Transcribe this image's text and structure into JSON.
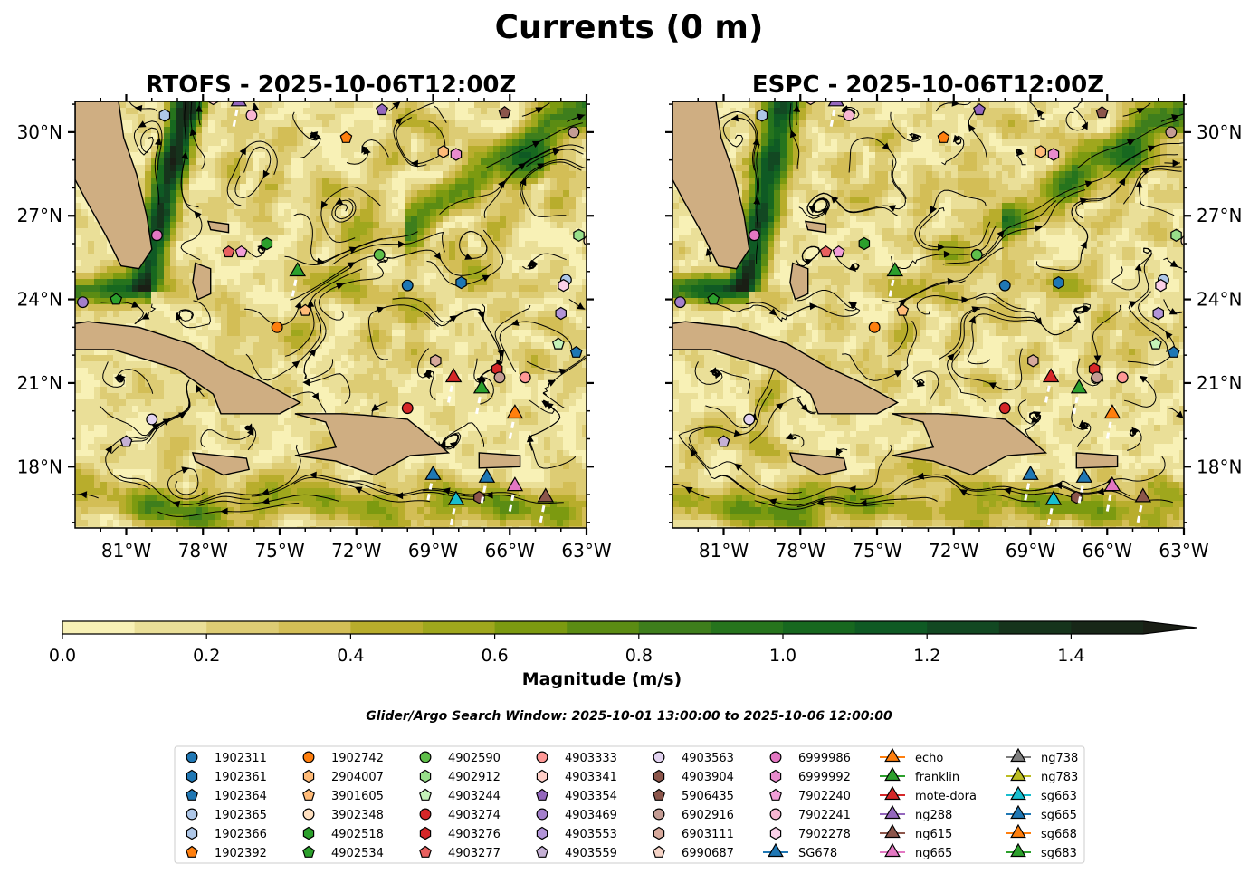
{
  "figure": {
    "title": "Currents (0 m)",
    "window_text": "Glider/Argo Search Window: 2025-10-01 13:00:00 to 2025-10-06 12:00:00"
  },
  "chart_data": [
    {
      "type": "heatmap",
      "title": "RTOFS - 2025-10-06T12:00Z",
      "xlabel": "",
      "ylabel": "",
      "lon_range": [
        -83.0,
        -63.0
      ],
      "lat_range": [
        15.8,
        31.1
      ],
      "x_ticks": [
        "81°W",
        "78°W",
        "75°W",
        "72°W",
        "69°W",
        "66°W",
        "63°W"
      ],
      "y_ticks": [
        "18°N",
        "21°N",
        "24°N",
        "27°N",
        "30°N"
      ],
      "y_tick_side": "left",
      "grid": false
    },
    {
      "type": "heatmap",
      "title": "ESPC - 2025-10-06T12:00Z",
      "xlabel": "",
      "ylabel": "",
      "lon_range": [
        -83.0,
        -63.0
      ],
      "lat_range": [
        15.8,
        31.1
      ],
      "x_ticks": [
        "81°W",
        "78°W",
        "75°W",
        "72°W",
        "69°W",
        "66°W",
        "63°W"
      ],
      "y_ticks": [
        "18°N",
        "21°N",
        "24°N",
        "27°N",
        "30°N"
      ],
      "y_tick_side": "right",
      "grid": false
    }
  ],
  "colorbar": {
    "label": "Magnitude (m/s)",
    "range": [
      0.0,
      1.5
    ],
    "step": 0.1,
    "extend": "max",
    "ticks": [
      "0.0",
      "0.2",
      "0.4",
      "0.6",
      "0.8",
      "1.0",
      "1.2",
      "1.4"
    ],
    "colors": [
      "#f8f1b6",
      "#eadf98",
      "#ddcc74",
      "#d3be56",
      "#b8ad2c",
      "#9fa71d",
      "#7c9a10",
      "#5b8c13",
      "#3e7e1c",
      "#26741d",
      "#17681f",
      "#0f5a24",
      "#124822",
      "#16341c",
      "#182718",
      "#1a1e15"
    ]
  },
  "legend": {
    "columns": [
      [
        {
          "label": "1902311",
          "marker": "circle",
          "color": "#1f77b4"
        },
        {
          "label": "1902361",
          "marker": "hexagon",
          "color": "#1f77b4"
        },
        {
          "label": "1902364",
          "marker": "pentagon",
          "color": "#1f77b4"
        },
        {
          "label": "1902365",
          "marker": "circle",
          "color": "#aec7e8"
        },
        {
          "label": "1902366",
          "marker": "hexagon",
          "color": "#aec7e8"
        },
        {
          "label": "1902392",
          "marker": "pentagon",
          "color": "#ff7f0e"
        }
      ],
      [
        {
          "label": "1902742",
          "marker": "circle",
          "color": "#ff7f0e"
        },
        {
          "label": "2904007",
          "marker": "hexagon",
          "color": "#ffbb78"
        },
        {
          "label": "3901605",
          "marker": "pentagon",
          "color": "#ffbb78"
        },
        {
          "label": "3902348",
          "marker": "circle",
          "color": "#ffe0c0"
        },
        {
          "label": "4902518",
          "marker": "hexagon",
          "color": "#2ca02c"
        },
        {
          "label": "4902534",
          "marker": "pentagon",
          "color": "#2ca02c"
        }
      ],
      [
        {
          "label": "4902590",
          "marker": "circle",
          "color": "#5fbf4a"
        },
        {
          "label": "4902912",
          "marker": "hexagon",
          "color": "#98df8a"
        },
        {
          "label": "4903244",
          "marker": "pentagon",
          "color": "#c5f2b8"
        },
        {
          "label": "4903274",
          "marker": "circle",
          "color": "#d62728"
        },
        {
          "label": "4903276",
          "marker": "hexagon",
          "color": "#d62728"
        },
        {
          "label": "4903277",
          "marker": "pentagon",
          "color": "#e8605f"
        }
      ],
      [
        {
          "label": "4903333",
          "marker": "circle",
          "color": "#ff9896"
        },
        {
          "label": "4903341",
          "marker": "hexagon",
          "color": "#ffcfc8"
        },
        {
          "label": "4903354",
          "marker": "pentagon",
          "color": "#9467bd"
        },
        {
          "label": "4903469",
          "marker": "circle",
          "color": "#a47fcc"
        },
        {
          "label": "4903553",
          "marker": "hexagon",
          "color": "#b294d8"
        },
        {
          "label": "4903559",
          "marker": "pentagon",
          "color": "#c5b0d5"
        }
      ],
      [
        {
          "label": "4903563",
          "marker": "circle",
          "color": "#e2d3f0"
        },
        {
          "label": "4903904",
          "marker": "hexagon",
          "color": "#8c564b"
        },
        {
          "label": "5906435",
          "marker": "pentagon",
          "color": "#8c564b"
        },
        {
          "label": "6902916",
          "marker": "circle",
          "color": "#c49c94"
        },
        {
          "label": "6903111",
          "marker": "hexagon",
          "color": "#d7a99c"
        },
        {
          "label": "6990687",
          "marker": "pentagon",
          "color": "#f5d3c6"
        }
      ],
      [
        {
          "label": "6999986",
          "marker": "circle",
          "color": "#e377c2"
        },
        {
          "label": "6999992",
          "marker": "hexagon",
          "color": "#e98bcd"
        },
        {
          "label": "7902240",
          "marker": "pentagon",
          "color": "#f29ed8"
        },
        {
          "label": "7902241",
          "marker": "circle",
          "color": "#f7b6d2"
        },
        {
          "label": "7902278",
          "marker": "hexagon",
          "color": "#fbd0e8"
        },
        {
          "label": "SG678",
          "marker": "triangle",
          "color": "#1f77b4"
        }
      ],
      [
        {
          "label": "echo",
          "marker": "triangle",
          "color": "#ff7f0e"
        },
        {
          "label": "franklin",
          "marker": "triangle",
          "color": "#2ca02c"
        },
        {
          "label": "mote-dora",
          "marker": "triangle",
          "color": "#d62728"
        },
        {
          "label": "ng288",
          "marker": "triangle",
          "color": "#9467bd"
        },
        {
          "label": "ng615",
          "marker": "triangle",
          "color": "#8c564b"
        },
        {
          "label": "ng665",
          "marker": "triangle",
          "color": "#e377c2"
        }
      ],
      [
        {
          "label": "ng738",
          "marker": "triangle",
          "color": "#7f7f7f"
        },
        {
          "label": "ng783",
          "marker": "triangle",
          "color": "#bcbd22"
        },
        {
          "label": "sg663",
          "marker": "triangle",
          "color": "#17becf"
        },
        {
          "label": "sg665",
          "marker": "triangle",
          "color": "#1f77b4"
        },
        {
          "label": "sg668",
          "marker": "triangle",
          "color": "#ff7f0e"
        },
        {
          "label": "sg683",
          "marker": "triangle",
          "color": "#2ca02c"
        }
      ]
    ]
  },
  "floats": [
    {
      "id": "1902311",
      "lon": -70.0,
      "lat": 24.5
    },
    {
      "id": "1902361",
      "lon": -67.9,
      "lat": 24.6
    },
    {
      "id": "1902364",
      "lon": -63.4,
      "lat": 22.1
    },
    {
      "id": "1902365",
      "lon": -63.8,
      "lat": 24.7
    },
    {
      "id": "1902366",
      "lon": -79.5,
      "lat": 30.6
    },
    {
      "id": "1902392",
      "lon": -72.4,
      "lat": 29.8
    },
    {
      "id": "1902742",
      "lon": -75.1,
      "lat": 23.0
    },
    {
      "id": "2904007",
      "lon": -68.6,
      "lat": 29.3
    },
    {
      "id": "3901605",
      "lon": -74.0,
      "lat": 23.6
    },
    {
      "id": "3902348",
      "lon": -62.9,
      "lat": 26.1
    },
    {
      "id": "4902518",
      "lon": -75.5,
      "lat": 26.0
    },
    {
      "id": "4902534",
      "lon": -81.4,
      "lat": 24.0
    },
    {
      "id": "4902590",
      "lon": -71.1,
      "lat": 25.6
    },
    {
      "id": "4902912",
      "lon": -63.3,
      "lat": 26.3
    },
    {
      "id": "4903244",
      "lon": -64.1,
      "lat": 22.4
    },
    {
      "id": "4903274",
      "lon": -70.0,
      "lat": 20.1
    },
    {
      "id": "4903276",
      "lon": -66.5,
      "lat": 21.5
    },
    {
      "id": "4903277",
      "lon": -77.0,
      "lat": 25.7
    },
    {
      "id": "4903333",
      "lon": -65.4,
      "lat": 21.2
    },
    {
      "id": "4903341",
      "lon": -77.6,
      "lat": 31.2
    },
    {
      "id": "4903354",
      "lon": -71.0,
      "lat": 30.8
    },
    {
      "id": "4903469",
      "lon": -82.7,
      "lat": 23.9
    },
    {
      "id": "4903553",
      "lon": -64.0,
      "lat": 23.5
    },
    {
      "id": "4903559",
      "lon": -81.0,
      "lat": 18.9
    },
    {
      "id": "4903563",
      "lon": -80.0,
      "lat": 19.7
    },
    {
      "id": "4903904",
      "lon": -67.2,
      "lat": 16.9
    },
    {
      "id": "5906435",
      "lon": -66.2,
      "lat": 30.7
    },
    {
      "id": "6902916",
      "lon": -63.5,
      "lat": 30.0
    },
    {
      "id": "6902916b",
      "lon": -66.4,
      "lat": 21.2
    },
    {
      "id": "6903111",
      "lon": -68.9,
      "lat": 21.8
    },
    {
      "id": "6999986",
      "lon": -79.8,
      "lat": 26.3
    },
    {
      "id": "6999992",
      "lon": -68.1,
      "lat": 29.2
    },
    {
      "id": "7902240",
      "lon": -76.5,
      "lat": 25.7
    },
    {
      "id": "7902241",
      "lon": -76.1,
      "lat": 30.6
    },
    {
      "id": "7902278",
      "lon": -63.9,
      "lat": 24.5
    }
  ],
  "gliders": [
    {
      "id": "ng288",
      "lon": -76.6,
      "lat": 31.1
    },
    {
      "id": "franklin",
      "lon": -74.3,
      "lat": 25.0
    },
    {
      "id": "mote-dora",
      "lon": -68.2,
      "lat": 21.2
    },
    {
      "id": "sg683",
      "lon": -67.1,
      "lat": 20.8
    },
    {
      "id": "echo",
      "lon": -65.8,
      "lat": 19.9
    },
    {
      "id": "sg665",
      "lon": -69.0,
      "lat": 17.7
    },
    {
      "id": "sg663",
      "lon": -68.1,
      "lat": 16.8
    },
    {
      "id": "SG678",
      "lon": -66.9,
      "lat": 17.6
    },
    {
      "id": "ng665",
      "lon": -65.8,
      "lat": 17.3
    },
    {
      "id": "ng615",
      "lon": -64.6,
      "lat": 16.9
    }
  ]
}
